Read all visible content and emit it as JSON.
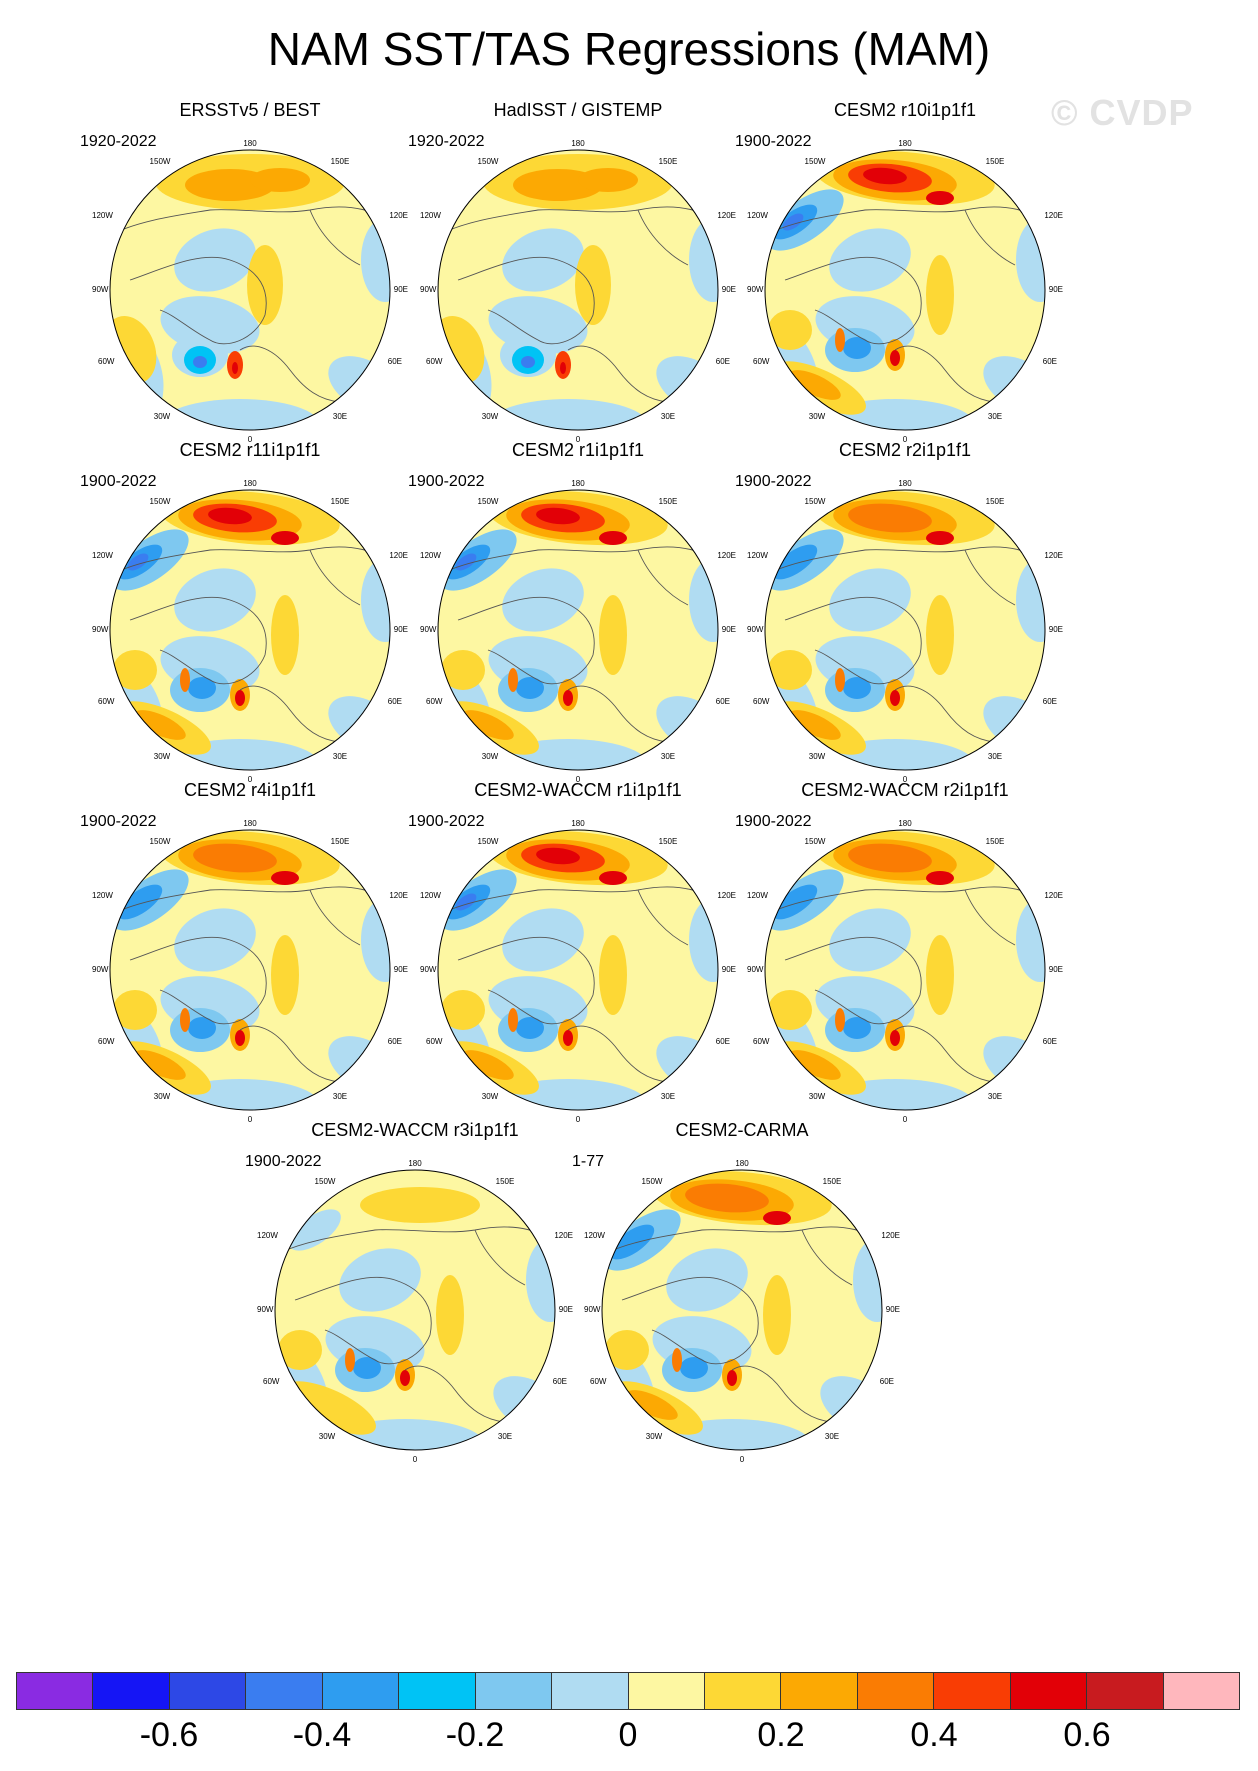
{
  "title": "NAM SST/TAS Regressions (MAM)",
  "watermark": "© CVDP",
  "longitude_labels": {
    "top": "180",
    "bottom": "0",
    "upper_left": "150W",
    "upper_right": "150E",
    "left_upper": "120W",
    "right_upper": "120E",
    "left": "90W",
    "right": "90E",
    "left_lower": "60W",
    "right_lower": "60E",
    "lower_left": "30W",
    "lower_right": "30E"
  },
  "panels": [
    {
      "title": "ERSSTv5 / BEST",
      "years": "1920-2022",
      "pattern": "obs"
    },
    {
      "title": "HadISST / GISTEMP",
      "years": "1920-2022",
      "pattern": "obs"
    },
    {
      "title": "CESM2 r10i1p1f1",
      "years": "1900-2022",
      "pattern": "strong"
    },
    {
      "title": "CESM2 r11i1p1f1",
      "years": "1900-2022",
      "pattern": "strong"
    },
    {
      "title": "CESM2 r1i1p1f1",
      "years": "1900-2022",
      "pattern": "strong"
    },
    {
      "title": "CESM2 r2i1p1f1",
      "years": "1900-2022",
      "pattern": "medium"
    },
    {
      "title": "CESM2 r4i1p1f1",
      "years": "1900-2022",
      "pattern": "medium"
    },
    {
      "title": "CESM2-WACCM r1i1p1f1",
      "years": "1900-2022",
      "pattern": "strong"
    },
    {
      "title": "CESM2-WACCM r2i1p1f1",
      "years": "1900-2022",
      "pattern": "medium"
    },
    {
      "title": "CESM2-WACCM r3i1p1f1",
      "years": "1900-2022",
      "pattern": "weak"
    },
    {
      "title": "CESM2-CARMA",
      "years": "1-77",
      "pattern": "medium"
    }
  ],
  "colorbar": {
    "colors": [
      "#8a2be2",
      "#1515f5",
      "#2d48e6",
      "#3a7df0",
      "#2e9df0",
      "#00c3f5",
      "#7ec8f0",
      "#b0dcf2",
      "#fdf7a2",
      "#fdd835",
      "#fca903",
      "#fa7c03",
      "#f93d04",
      "#e20007",
      "#c81b1f",
      "#ffb7bd"
    ],
    "labels": [
      "-0.6",
      "-0.4",
      "-0.2",
      "0",
      "0.2",
      "0.4",
      "0.6"
    ],
    "label_values": [
      -0.6,
      -0.4,
      -0.2,
      0,
      0.2,
      0.4,
      0.6
    ],
    "min": -0.8,
    "max": 0.8
  }
}
